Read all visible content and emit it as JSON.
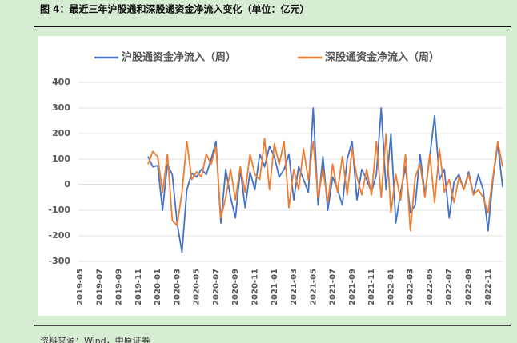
{
  "chart_data": {
    "type": "line",
    "title": "图 4：最近三年沪股通和深股通资金净流入变化（单位：亿元）",
    "source": "资料来源：Wind，中原证券",
    "categories": [
      "2019-05",
      null,
      null,
      null,
      "2019-07",
      null,
      null,
      null,
      "2019-09",
      null,
      null,
      null,
      "2019-11",
      null,
      null,
      null,
      "2020-01",
      null,
      null,
      null,
      "2020-03",
      null,
      null,
      null,
      "2020-05",
      null,
      null,
      null,
      "2020-07",
      null,
      null,
      null,
      "2020-09",
      null,
      null,
      null,
      "2020-11",
      null,
      null,
      null,
      "2021-01",
      null,
      null,
      null,
      "2021-03",
      null,
      null,
      null,
      "2021-05",
      null,
      null,
      null,
      "2021-07",
      null,
      null,
      null,
      "2021-09",
      null,
      null,
      null,
      "2021-11",
      null,
      null,
      null,
      "2022-01",
      null,
      null,
      null,
      "2022-03",
      null,
      null,
      null,
      "2022-05",
      null,
      null,
      null,
      "2022-07",
      null,
      null,
      null,
      "2022-09",
      null,
      null,
      null,
      "2022-11",
      null,
      null,
      null
    ],
    "series": [
      {
        "name": "沪股通资金净流入（周）",
        "color": "#4472c4",
        "values": [
          null,
          null,
          null,
          null,
          null,
          null,
          null,
          null,
          null,
          null,
          null,
          null,
          null,
          null,
          110,
          70,
          75,
          -100,
          80,
          40,
          -150,
          -265,
          -20,
          45,
          30,
          60,
          40,
          100,
          170,
          -150,
          60,
          -50,
          -130,
          60,
          -90,
          50,
          -20,
          120,
          70,
          150,
          110,
          30,
          60,
          120,
          -60,
          70,
          20,
          -30,
          300,
          -80,
          110,
          -100,
          30,
          -20,
          -80,
          100,
          170,
          -60,
          60,
          20,
          -30,
          40,
          300,
          -20,
          200,
          -150,
          -30,
          70,
          -110,
          -80,
          120,
          -40,
          110,
          270,
          20,
          60,
          -130,
          10,
          40,
          -20,
          50,
          -40,
          40,
          -20,
          -180,
          20,
          160,
          -10
        ]
      },
      {
        "name": "深股通资金净流入（周）",
        "color": "#ed7d31",
        "values": [
          null,
          null,
          null,
          null,
          null,
          null,
          null,
          null,
          null,
          null,
          null,
          null,
          null,
          null,
          80,
          130,
          110,
          -30,
          120,
          -140,
          -160,
          -30,
          170,
          20,
          50,
          30,
          120,
          80,
          150,
          -130,
          -50,
          60,
          -60,
          70,
          -30,
          120,
          40,
          20,
          180,
          -20,
          160,
          80,
          170,
          -90,
          60,
          -20,
          140,
          20,
          170,
          -50,
          60,
          -70,
          80,
          -30,
          110,
          -40,
          140,
          30,
          -40,
          60,
          -40,
          170,
          -50,
          200,
          -110,
          40,
          -60,
          120,
          -180,
          30,
          80,
          -50,
          120,
          -70,
          140,
          -30,
          20,
          -70,
          30,
          -20,
          40,
          -40,
          -20,
          -50,
          -110,
          30,
          170,
          70
        ]
      }
    ],
    "ylim": [
      -300,
      400
    ],
    "yticks": [
      -300,
      -200,
      -100,
      0,
      100,
      200,
      300,
      400
    ],
    "grid": true,
    "legend": "top"
  }
}
